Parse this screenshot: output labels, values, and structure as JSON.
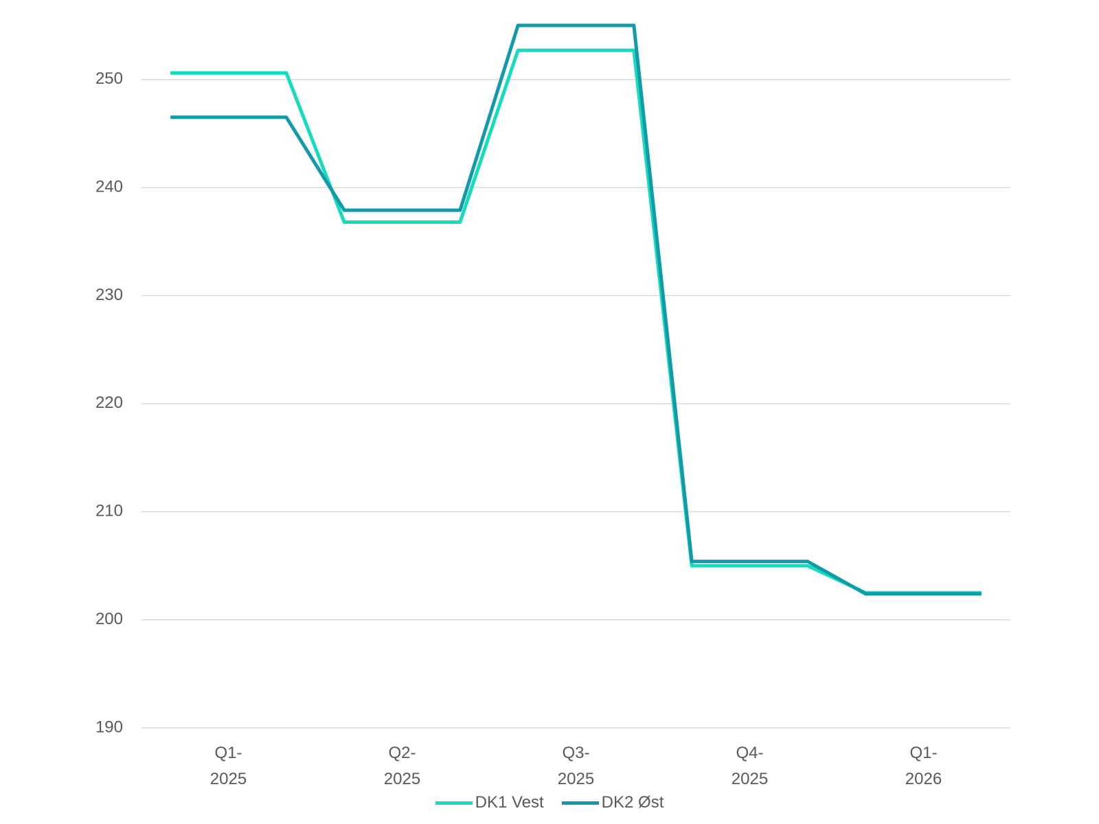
{
  "chart_data": {
    "type": "line",
    "categories": [
      null,
      "Q1- 2025",
      null,
      null,
      "Q2- 2025",
      null,
      null,
      "Q3- 2025",
      null,
      null,
      "Q4- 2025",
      null,
      null,
      "Q1- 2026",
      null
    ],
    "series": [
      {
        "name": "DK1 Vest",
        "color": "#14dcbc",
        "values": [
          250.6,
          250.6,
          250.6,
          236.8,
          236.8,
          236.8,
          252.7,
          252.7,
          252.7,
          205.0,
          205.0,
          205.0,
          202.5,
          202.5,
          202.5
        ]
      },
      {
        "name": "DK2 Øst",
        "color": "#119ba8",
        "values": [
          246.5,
          246.5,
          246.5,
          237.9,
          237.9,
          237.9,
          255.0,
          255.0,
          255.0,
          205.4,
          205.4,
          205.4,
          202.4,
          202.4,
          202.4
        ]
      }
    ],
    "ylim": [
      190,
      255
    ],
    "yticks": [
      190,
      200,
      210,
      220,
      230,
      240,
      250
    ],
    "grid": true,
    "legend": "bottom"
  }
}
